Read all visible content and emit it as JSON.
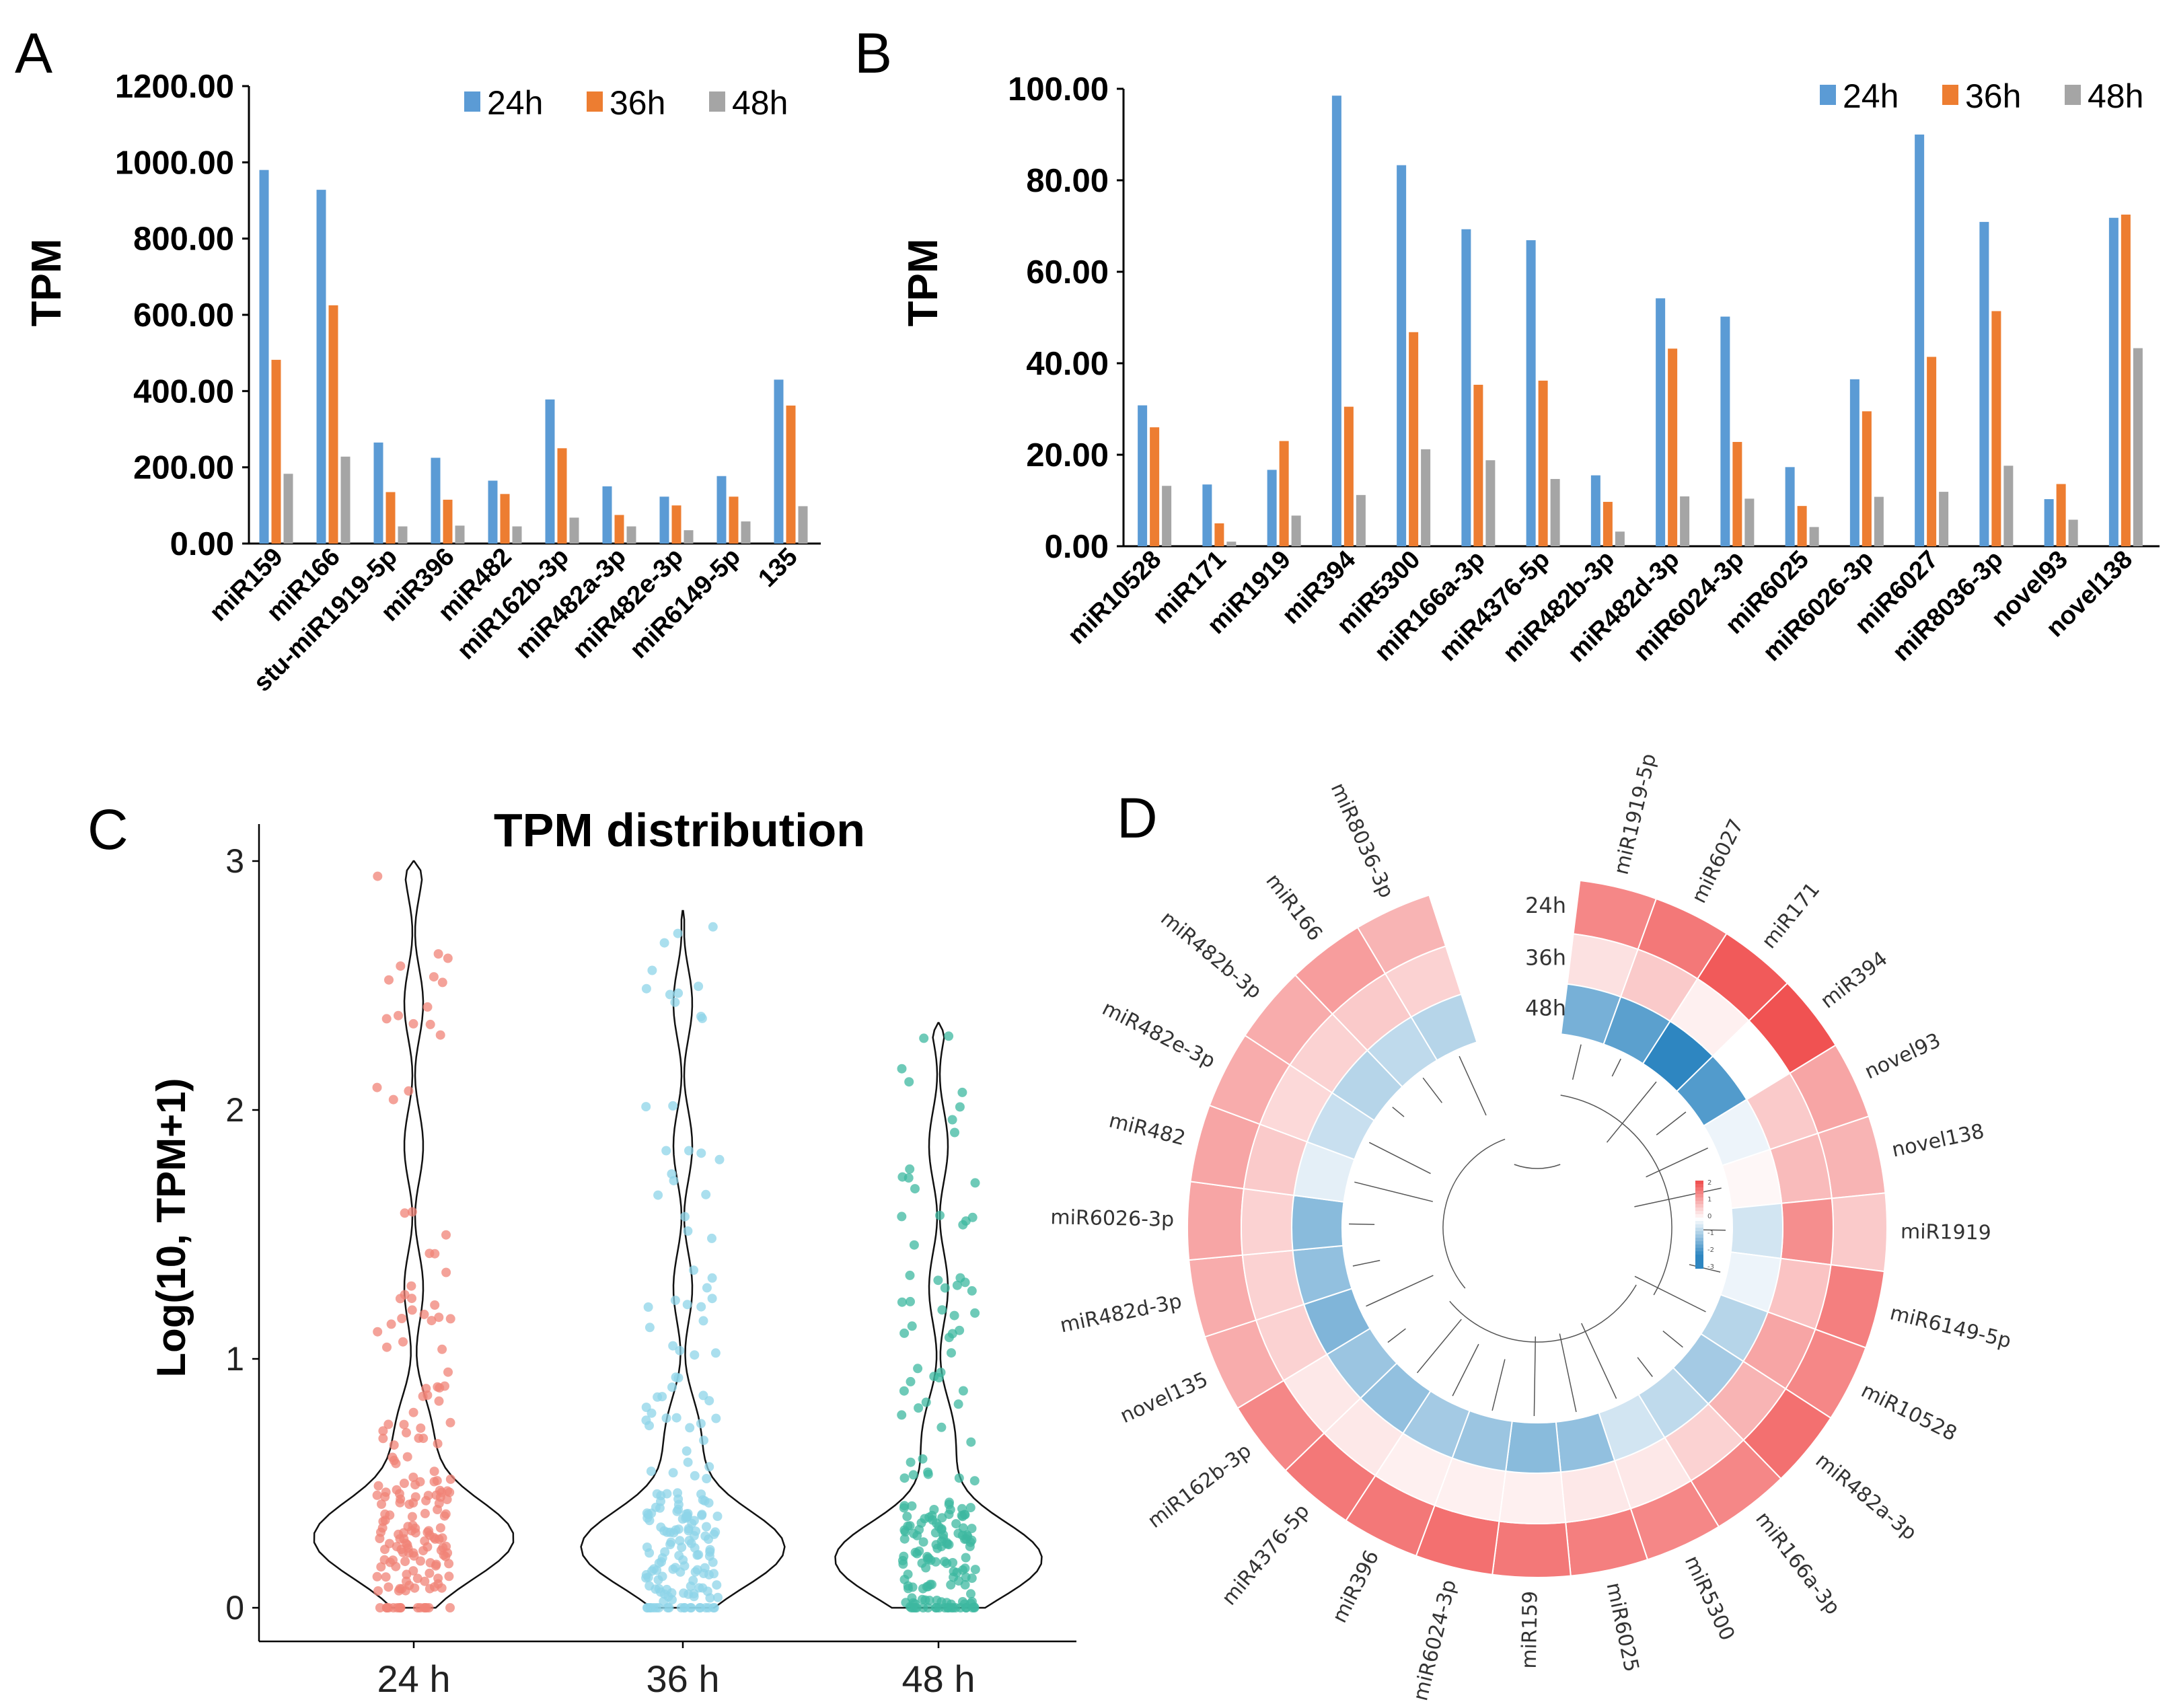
{
  "panels": {
    "a": "A",
    "b": "B",
    "c": "C",
    "d": "D"
  },
  "colors": {
    "h24": "#5B9BD5",
    "h36": "#ED7D31",
    "h48": "#A5A5A5",
    "red": "#F05252",
    "blue": "#2E86C1",
    "c24": "#F08377",
    "c36": "#8DD4E8",
    "c48": "#3DB8A0"
  },
  "chart_data": [
    {
      "type": "bar",
      "panel": "A",
      "ylabel": "TPM",
      "ylim": [
        0,
        1200
      ],
      "yticks": [
        "0.00",
        "200.00",
        "400.00",
        "600.00",
        "800.00",
        "1000.00",
        "1200.00"
      ],
      "categories": [
        "miR159",
        "miR166",
        "stu-miR1919-5p",
        "miR396",
        "miR482",
        "miR162b-3p",
        "miR482a-3p",
        "miR482e-3p",
        "miR6149-5p",
        "135"
      ],
      "series": [
        {
          "name": "24h",
          "values": [
            980,
            928,
            265,
            225,
            165,
            378,
            150,
            123,
            177,
            430
          ]
        },
        {
          "name": "36h",
          "values": [
            482,
            625,
            135,
            115,
            130,
            250,
            75,
            100,
            123,
            362
          ]
        },
        {
          "name": "48h",
          "values": [
            183,
            228,
            45,
            47,
            45,
            68,
            45,
            35,
            58,
            98
          ]
        }
      ]
    },
    {
      "type": "bar",
      "panel": "B",
      "ylabel": "TPM",
      "ylim": [
        0,
        100
      ],
      "yticks": [
        "0.00",
        "20.00",
        "40.00",
        "60.00",
        "80.00",
        "100.00"
      ],
      "categories": [
        "miR10528",
        "miR171",
        "miR1919",
        "miR394",
        "miR5300",
        "miR166a-3p",
        "miR4376-5p",
        "miR482b-3p",
        "miR482d-3p",
        "miR6024-3p",
        "miR6025",
        "miR6026-3p",
        "miR6027",
        "miR8036-3p",
        "novel93",
        "novel138"
      ],
      "series": [
        {
          "name": "24h",
          "values": [
            30.8,
            13.5,
            16.7,
            98.5,
            83.3,
            69.3,
            66.9,
            15.5,
            54.2,
            50.2,
            17.3,
            36.5,
            90.0,
            70.9,
            10.3,
            71.8
          ]
        },
        {
          "name": "36h",
          "values": [
            26.0,
            5.0,
            23.0,
            30.5,
            46.8,
            35.3,
            36.2,
            9.7,
            43.2,
            22.8,
            8.8,
            29.5,
            41.4,
            51.4,
            13.6,
            72.5
          ]
        },
        {
          "name": "48h",
          "values": [
            13.2,
            1.0,
            6.7,
            11.2,
            21.2,
            18.8,
            14.7,
            3.2,
            10.9,
            10.4,
            4.2,
            10.8,
            11.9,
            17.6,
            5.8,
            43.3
          ]
        }
      ]
    },
    {
      "type": "violin",
      "panel": "C",
      "title": "TPM distribution",
      "ylabel": "Log(10, TPM+1)",
      "ylim": [
        0,
        3
      ],
      "yticks": [
        "0",
        "1",
        "2",
        "3"
      ],
      "categories": [
        "24 h",
        "36 h",
        "48 h"
      ],
      "max": [
        3.0,
        2.8,
        2.35
      ],
      "peak": [
        0.29,
        0.25,
        0.2
      ]
    },
    {
      "type": "heatmap",
      "panel": "D",
      "tracks": [
        "24h",
        "36h",
        "48h"
      ],
      "labels": [
        "miR1919-5p",
        "miR6027",
        "miR171",
        "miR394",
        "novel93",
        "novel138",
        "miR1919",
        "miR6149-5p",
        "miR10528",
        "miR482a-3p",
        "miR166a-3p",
        "miR5300",
        "miR6025",
        "miR159",
        "miR6024-3p",
        "miR396",
        "miR4376-5p",
        "miR162b-3p",
        "novel135",
        "miR482d-3p",
        "miR6026-3p",
        "miR482",
        "miR482e-3p",
        "miR482b-3p",
        "miR166",
        "miR8036-3p"
      ],
      "values": [
        [
          1.6,
          0.4,
          -1.5
        ],
        [
          1.8,
          0.7,
          -1.8
        ],
        [
          2.2,
          0.2,
          -2.3
        ],
        [
          2.3,
          0.0,
          -1.9
        ],
        [
          1.2,
          0.7,
          -0.2
        ],
        [
          1.0,
          0.9,
          0.1
        ],
        [
          0.7,
          1.5,
          -0.5
        ],
        [
          1.7,
          0.8,
          -0.2
        ],
        [
          1.6,
          1.2,
          -0.8
        ],
        [
          1.9,
          1.0,
          -1.0
        ],
        [
          1.6,
          0.6,
          -0.7
        ],
        [
          1.6,
          0.3,
          -0.5
        ],
        [
          1.7,
          0.3,
          -1.2
        ],
        [
          1.8,
          0.2,
          -1.3
        ],
        [
          1.9,
          0.2,
          -1.1
        ],
        [
          1.8,
          0.2,
          -1.0
        ],
        [
          1.8,
          0.3,
          -1.2
        ],
        [
          1.6,
          0.3,
          -1.1
        ],
        [
          1.1,
          0.6,
          -1.4
        ],
        [
          1.1,
          0.6,
          -1.2
        ],
        [
          1.2,
          0.6,
          -1.3
        ],
        [
          1.2,
          0.7,
          -0.3
        ],
        [
          1.1,
          0.5,
          -0.6
        ],
        [
          1.1,
          0.6,
          -0.8
        ],
        [
          1.3,
          0.7,
          -0.7
        ],
        [
          1.0,
          0.6,
          -0.8
        ]
      ],
      "legend_ticks": [
        "2",
        "1",
        "0",
        "-1",
        "-2",
        "-3"
      ]
    }
  ]
}
